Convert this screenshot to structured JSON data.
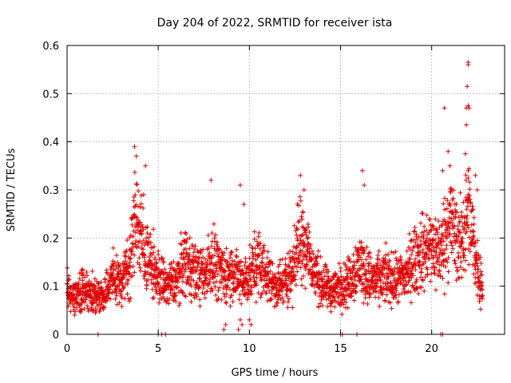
{
  "chart_data": {
    "type": "scatter",
    "title": "Day 204 of 2022, SRMTID for receiver ista",
    "xlabel": "GPS time / hours",
    "ylabel": "SRMTID / TECUs",
    "xlim": [
      0,
      24
    ],
    "ylim": [
      0,
      0.6
    ],
    "x_ticks": [
      0,
      5,
      10,
      15,
      20
    ],
    "x_tick_labels": [
      "0",
      "5",
      "10",
      "15",
      "20"
    ],
    "y_ticks": [
      0,
      0.1,
      0.2,
      0.3,
      0.4,
      0.5,
      0.6
    ],
    "y_tick_labels": [
      "0",
      "0.1",
      "0.2",
      "0.3",
      "0.4",
      "0.5",
      "0.6"
    ],
    "grid": true,
    "marker": "+",
    "color": "#e00000",
    "trend": [
      [
        0.0,
        0.09
      ],
      [
        0.5,
        0.08
      ],
      [
        1.0,
        0.09
      ],
      [
        1.5,
        0.08
      ],
      [
        2.0,
        0.08
      ],
      [
        2.5,
        0.12
      ],
      [
        3.0,
        0.11
      ],
      [
        3.5,
        0.16
      ],
      [
        3.8,
        0.26
      ],
      [
        4.0,
        0.2
      ],
      [
        4.5,
        0.15
      ],
      [
        5.0,
        0.12
      ],
      [
        5.5,
        0.1
      ],
      [
        6.0,
        0.11
      ],
      [
        6.5,
        0.16
      ],
      [
        7.0,
        0.13
      ],
      [
        7.5,
        0.12
      ],
      [
        8.0,
        0.16
      ],
      [
        8.5,
        0.12
      ],
      [
        9.0,
        0.13
      ],
      [
        9.5,
        0.11
      ],
      [
        10.0,
        0.12
      ],
      [
        10.5,
        0.15
      ],
      [
        11.0,
        0.12
      ],
      [
        11.5,
        0.1
      ],
      [
        12.0,
        0.11
      ],
      [
        12.5,
        0.15
      ],
      [
        12.8,
        0.21
      ],
      [
        13.0,
        0.2
      ],
      [
        13.5,
        0.13
      ],
      [
        14.0,
        0.1
      ],
      [
        14.5,
        0.09
      ],
      [
        15.0,
        0.1
      ],
      [
        15.5,
        0.11
      ],
      [
        16.0,
        0.15
      ],
      [
        16.5,
        0.12
      ],
      [
        17.0,
        0.11
      ],
      [
        17.5,
        0.12
      ],
      [
        18.0,
        0.11
      ],
      [
        18.5,
        0.12
      ],
      [
        19.0,
        0.15
      ],
      [
        19.5,
        0.17
      ],
      [
        20.0,
        0.18
      ],
      [
        20.5,
        0.17
      ],
      [
        21.0,
        0.24
      ],
      [
        21.5,
        0.18
      ],
      [
        22.0,
        0.25
      ],
      [
        22.5,
        0.14
      ],
      [
        22.8,
        0.1
      ]
    ],
    "x_range": [
      0.0,
      22.8
    ],
    "peaks": [
      {
        "x": 3.7,
        "y": 0.39
      },
      {
        "x": 3.8,
        "y": 0.37
      },
      {
        "x": 4.3,
        "y": 0.35
      },
      {
        "x": 4.2,
        "y": 0.29
      },
      {
        "x": 7.9,
        "y": 0.32
      },
      {
        "x": 9.5,
        "y": 0.31
      },
      {
        "x": 9.7,
        "y": 0.27
      },
      {
        "x": 12.8,
        "y": 0.33
      },
      {
        "x": 13.0,
        "y": 0.3
      },
      {
        "x": 16.2,
        "y": 0.34
      },
      {
        "x": 16.3,
        "y": 0.31
      },
      {
        "x": 20.6,
        "y": 0.34
      },
      {
        "x": 20.7,
        "y": 0.47
      },
      {
        "x": 20.9,
        "y": 0.38
      },
      {
        "x": 21.0,
        "y": 0.35
      },
      {
        "x": 21.9,
        "y": 0.47
      },
      {
        "x": 22.0,
        "y": 0.475
      },
      {
        "x": 22.05,
        "y": 0.47
      },
      {
        "x": 21.95,
        "y": 0.515
      },
      {
        "x": 22.0,
        "y": 0.565
      },
      {
        "x": 22.0,
        "y": 0.56
      },
      {
        "x": 21.9,
        "y": 0.435
      },
      {
        "x": 21.85,
        "y": 0.375
      },
      {
        "x": 22.0,
        "y": 0.34
      },
      {
        "x": 22.4,
        "y": 0.33
      },
      {
        "x": 22.5,
        "y": 0.3
      }
    ],
    "dips": [
      {
        "x": 8.6,
        "y": 0.01
      },
      {
        "x": 8.7,
        "y": 0.02
      },
      {
        "x": 9.4,
        "y": 0.01
      },
      {
        "x": 9.5,
        "y": 0.03
      },
      {
        "x": 9.6,
        "y": 0.02
      },
      {
        "x": 10.0,
        "y": 0.03
      },
      {
        "x": 10.1,
        "y": 0.02
      }
    ],
    "zero_points": [
      1.7,
      5.0,
      5.2,
      5.4,
      15.0,
      15.1,
      15.9,
      20.5,
      20.6
    ]
  }
}
